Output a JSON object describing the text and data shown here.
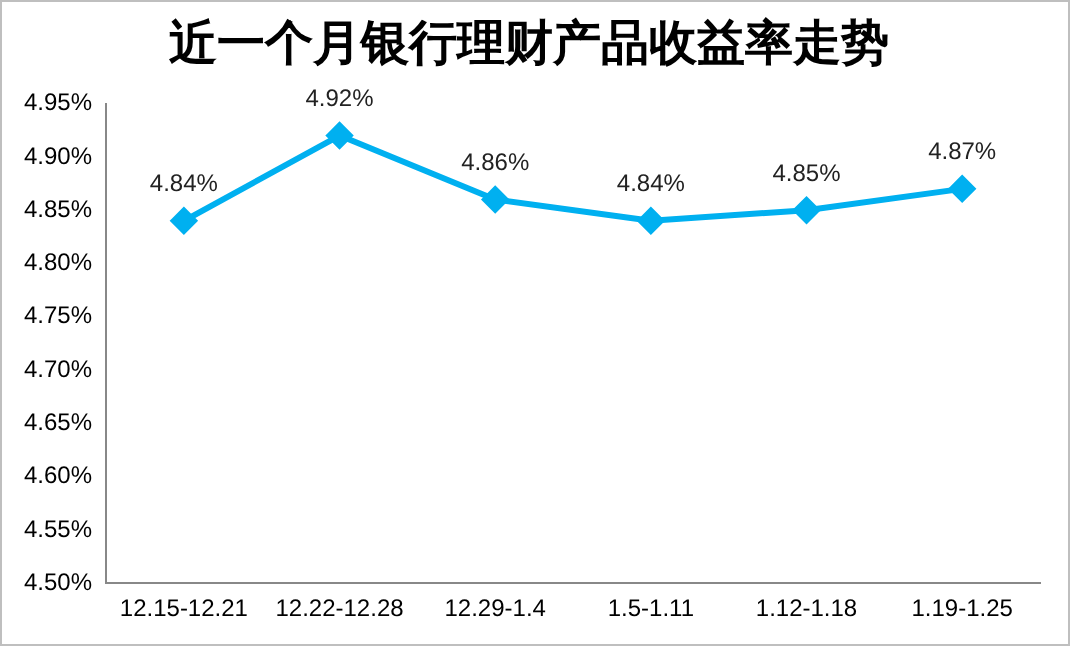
{
  "chart_data": {
    "type": "line",
    "title": "近一个月银行理财产品收益率走势",
    "categories": [
      "12.15-12.21",
      "12.22-12.28",
      "12.29-1.4",
      "1.5-1.11",
      "1.12-1.18",
      "1.19-1.25"
    ],
    "series": [
      {
        "color": "#00b0f0",
        "values": [
          4.84,
          4.92,
          4.86,
          4.84,
          4.85,
          4.87
        ],
        "value_labels": [
          "4.84%",
          "4.92%",
          "4.86%",
          "4.84%",
          "4.85%",
          "4.87%"
        ]
      }
    ],
    "ylim": [
      4.5,
      4.95
    ],
    "yticks": [
      {
        "value": 4.5,
        "label": "4.50%"
      },
      {
        "value": 4.55,
        "label": "4.55%"
      },
      {
        "value": 4.6,
        "label": "4.60%"
      },
      {
        "value": 4.65,
        "label": "4.65%"
      },
      {
        "value": 4.7,
        "label": "4.70%"
      },
      {
        "value": 4.75,
        "label": "4.75%"
      },
      {
        "value": 4.8,
        "label": "4.80%"
      },
      {
        "value": 4.85,
        "label": "4.85%"
      },
      {
        "value": 4.9,
        "label": "4.90%"
      },
      {
        "value": 4.95,
        "label": "4.95%"
      }
    ],
    "grid": false,
    "legend": false,
    "marker": "diamond",
    "line_style": "solid"
  }
}
